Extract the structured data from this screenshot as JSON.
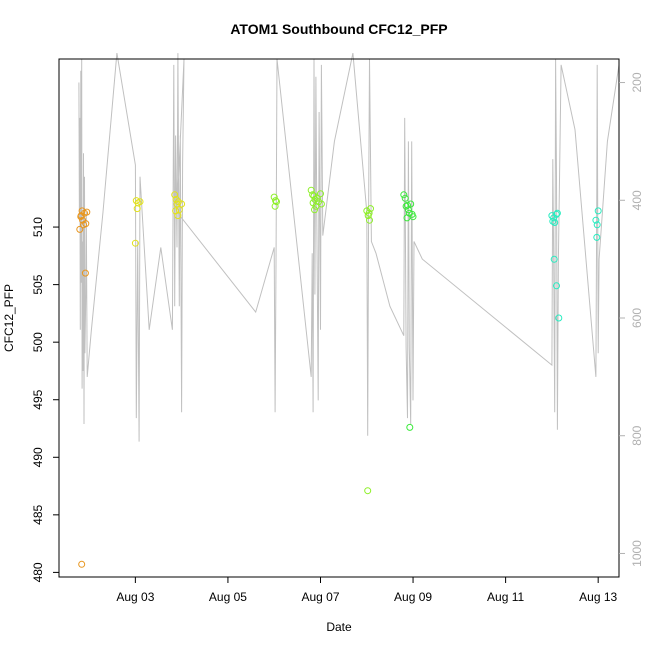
{
  "chart_data": {
    "type": "scatter",
    "title": "ATOM1 Southbound CFC12_PFP",
    "xlabel": "Date",
    "ylabel": "CFC12_PFP",
    "x_ticks": [
      "Aug 03",
      "Aug 05",
      "Aug 07",
      "Aug 09",
      "Aug 11",
      "Aug 13"
    ],
    "x_tick_values": [
      3,
      5,
      7,
      9,
      11,
      13
    ],
    "y_ticks": [
      480,
      485,
      490,
      495,
      500,
      505,
      510
    ],
    "xlim": [
      1.35,
      13.45
    ],
    "ylim": [
      479.6,
      524.6
    ],
    "y2_ticks": [
      200,
      400,
      600,
      800,
      1000
    ],
    "y2lim": [
      1040,
      160
    ],
    "y2_label": "",
    "y2_color": "#b0b0b0",
    "legend": "none",
    "grid": false,
    "series": [
      {
        "color": "#e8961e",
        "points": [
          [
            1.85,
            511.4
          ],
          [
            1.83,
            511.0
          ],
          [
            1.9,
            511.2
          ],
          [
            1.82,
            510.9
          ],
          [
            1.86,
            510.6
          ],
          [
            1.88,
            510.2
          ],
          [
            1.93,
            510.3
          ],
          [
            1.8,
            509.8
          ],
          [
            1.95,
            511.3
          ],
          [
            1.92,
            506.0
          ],
          [
            1.84,
            480.7
          ]
        ]
      },
      {
        "color": "#e2e21a",
        "points": [
          [
            3.02,
            512.3
          ],
          [
            3.06,
            512.1
          ],
          [
            3.1,
            512.2
          ],
          [
            3.04,
            511.6
          ],
          [
            3.0,
            508.6
          ],
          [
            3.85,
            512.8
          ],
          [
            3.88,
            512.4
          ],
          [
            3.9,
            512.0
          ],
          [
            3.93,
            512.2
          ],
          [
            3.87,
            511.4
          ],
          [
            3.95,
            511.5
          ],
          [
            3.92,
            511.0
          ],
          [
            4.0,
            512.0
          ]
        ]
      },
      {
        "color": "#8ef028",
        "points": [
          [
            6.0,
            512.6
          ],
          [
            6.03,
            512.3
          ],
          [
            6.05,
            512.2
          ],
          [
            6.02,
            511.8
          ],
          [
            6.8,
            513.2
          ],
          [
            6.83,
            512.8
          ],
          [
            6.86,
            512.7
          ],
          [
            6.88,
            512.4
          ],
          [
            6.84,
            512.1
          ],
          [
            6.9,
            511.8
          ],
          [
            6.93,
            512.5
          ],
          [
            6.96,
            512.2
          ],
          [
            7.0,
            512.9
          ],
          [
            6.87,
            511.5
          ],
          [
            7.02,
            512.0
          ],
          [
            8.0,
            511.4
          ],
          [
            8.05,
            511.2
          ],
          [
            8.08,
            511.6
          ],
          [
            8.03,
            511.0
          ],
          [
            8.06,
            510.6
          ],
          [
            8.02,
            487.1
          ]
        ]
      },
      {
        "color": "#3aea3a",
        "points": [
          [
            8.8,
            512.8
          ],
          [
            8.83,
            512.5
          ],
          [
            8.85,
            511.8
          ],
          [
            8.88,
            511.9
          ],
          [
            8.9,
            511.5
          ],
          [
            8.92,
            511.2
          ],
          [
            8.95,
            512.0
          ],
          [
            8.98,
            511.1
          ],
          [
            9.0,
            510.9
          ],
          [
            8.87,
            510.8
          ],
          [
            8.93,
            492.6
          ]
        ]
      },
      {
        "color": "#28ecc0",
        "points": [
          [
            12.0,
            511.0
          ],
          [
            12.04,
            510.8
          ],
          [
            12.02,
            510.5
          ],
          [
            12.06,
            510.4
          ],
          [
            12.1,
            511.1
          ],
          [
            12.12,
            511.2
          ],
          [
            12.05,
            507.2
          ],
          [
            12.1,
            504.9
          ],
          [
            12.15,
            502.1
          ],
          [
            12.95,
            510.6
          ],
          [
            12.98,
            510.2
          ],
          [
            13.0,
            511.4
          ],
          [
            12.97,
            509.1
          ]
        ]
      }
    ],
    "altitude_trace": {
      "color": "#c0c0c0",
      "axis": "y2",
      "points": [
        [
          1.78,
          200
        ],
        [
          1.79,
          430
        ],
        [
          1.8,
          260
        ],
        [
          1.81,
          620
        ],
        [
          1.82,
          180
        ],
        [
          1.83,
          540
        ],
        [
          1.84,
          160
        ],
        [
          1.85,
          720
        ],
        [
          1.86,
          470
        ],
        [
          1.87,
          690
        ],
        [
          1.88,
          320
        ],
        [
          1.89,
          780
        ],
        [
          1.9,
          360
        ],
        [
          1.91,
          660
        ],
        [
          1.93,
          560
        ],
        [
          1.94,
          420
        ],
        [
          1.96,
          700
        ],
        [
          2.05,
          620
        ],
        [
          2.3,
          420
        ],
        [
          2.6,
          150
        ],
        [
          3.0,
          340
        ],
        [
          3.02,
          770
        ],
        [
          3.05,
          470
        ],
        [
          3.08,
          810
        ],
        [
          3.1,
          360
        ],
        [
          3.3,
          620
        ],
        [
          3.55,
          480
        ],
        [
          3.8,
          620
        ],
        [
          3.83,
          170
        ],
        [
          3.85,
          580
        ],
        [
          3.87,
          290
        ],
        [
          3.9,
          480
        ],
        [
          3.92,
          150
        ],
        [
          3.95,
          580
        ],
        [
          3.97,
          290
        ],
        [
          4.0,
          760
        ],
        [
          4.02,
          340
        ],
        [
          4.05,
          160
        ],
        [
          3.9,
          420
        ],
        [
          5.6,
          590
        ],
        [
          6.0,
          480
        ],
        [
          6.02,
          760
        ],
        [
          6.04,
          480
        ],
        [
          6.06,
          160
        ],
        [
          6.8,
          700
        ],
        [
          6.82,
          490
        ],
        [
          6.84,
          760
        ],
        [
          6.86,
          160
        ],
        [
          6.88,
          560
        ],
        [
          6.9,
          190
        ],
        [
          6.92,
          430
        ],
        [
          6.95,
          740
        ],
        [
          6.97,
          250
        ],
        [
          7.0,
          620
        ],
        [
          7.02,
          170
        ],
        [
          7.05,
          460
        ],
        [
          7.3,
          300
        ],
        [
          7.7,
          150
        ],
        [
          8.0,
          420
        ],
        [
          8.02,
          800
        ],
        [
          8.04,
          420
        ],
        [
          8.06,
          160
        ],
        [
          8.1,
          470
        ],
        [
          8.2,
          490
        ],
        [
          8.5,
          580
        ],
        [
          8.8,
          630
        ],
        [
          8.82,
          260
        ],
        [
          8.85,
          650
        ],
        [
          8.88,
          770
        ],
        [
          8.9,
          300
        ],
        [
          8.92,
          650
        ],
        [
          8.95,
          780
        ],
        [
          8.97,
          300
        ],
        [
          9.0,
          740
        ],
        [
          9.02,
          470
        ],
        [
          9.2,
          500
        ],
        [
          12.0,
          680
        ],
        [
          12.02,
          330
        ],
        [
          12.04,
          500
        ],
        [
          12.06,
          760
        ],
        [
          12.08,
          160
        ],
        [
          12.1,
          360
        ],
        [
          12.12,
          790
        ],
        [
          12.14,
          500
        ],
        [
          12.2,
          170
        ],
        [
          12.5,
          280
        ],
        [
          12.95,
          700
        ],
        [
          12.97,
          380
        ],
        [
          12.98,
          170
        ],
        [
          13.0,
          660
        ],
        [
          13.02,
          500
        ],
        [
          13.2,
          300
        ],
        [
          13.45,
          170
        ]
      ]
    }
  }
}
